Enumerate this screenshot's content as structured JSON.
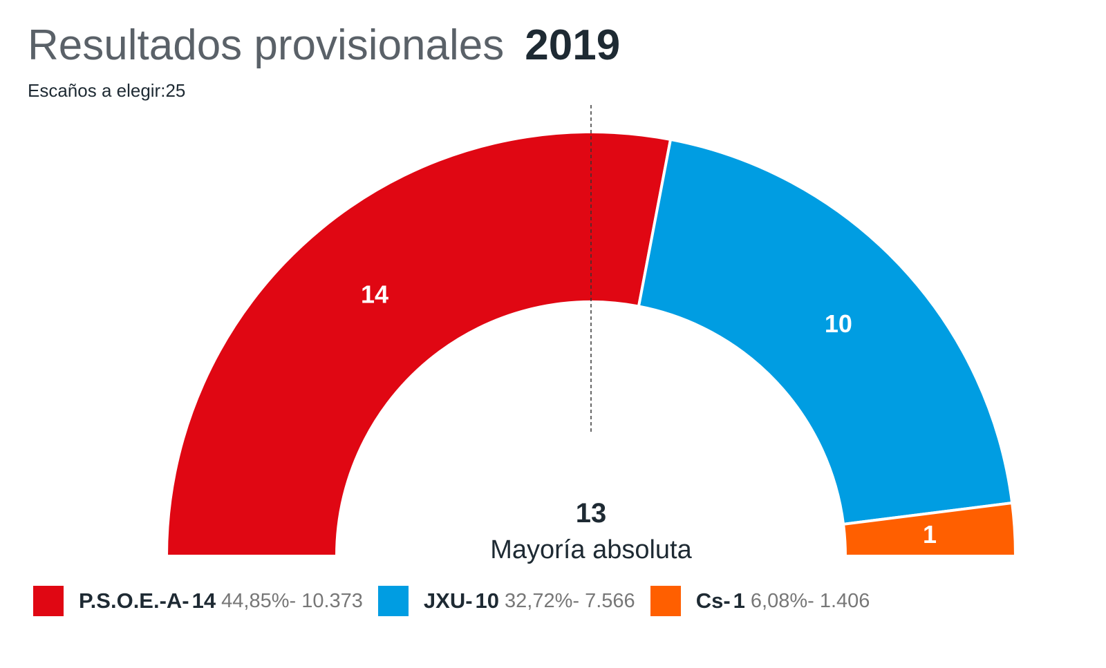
{
  "chart_data": {
    "type": "half-donut",
    "title": "Resultados provisionales",
    "year": "2019",
    "subtitle_label": "Escaños a elegir:",
    "total": 25,
    "majority": 13,
    "majority_label": "Mayoría absoluta",
    "series": [
      {
        "name": "P.S.O.E.-A-",
        "color": "#e00713",
        "value": 14,
        "detail": "44,85%- 10.373"
      },
      {
        "name": "JXU-",
        "color": "#009de2",
        "value": 10,
        "detail": "32,72%- 7.566"
      },
      {
        "name": "Cs-",
        "color": "#ff5f00",
        "value": 1,
        "detail": "6,08%- 1.406"
      }
    ]
  }
}
